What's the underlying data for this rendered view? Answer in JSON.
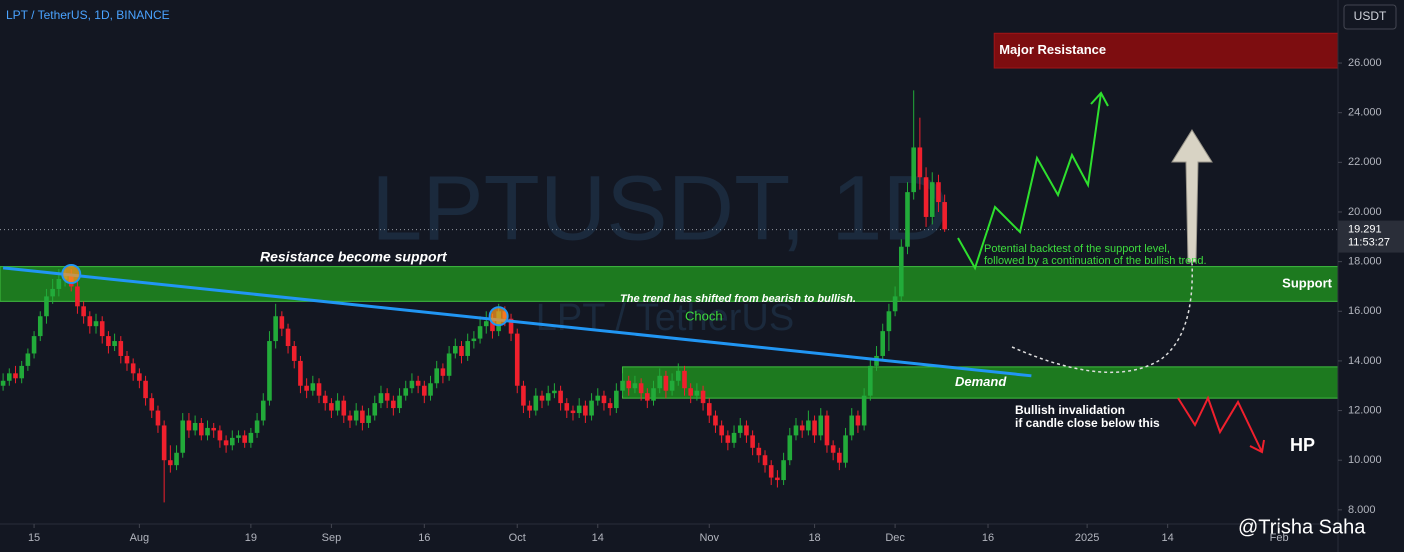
{
  "chart_data": {
    "type": "candlestick",
    "title": "LPT / TetherUS, 1D, BINANCE",
    "watermark": "LPTUSDT, 1D",
    "watermark_sub": "LPT / TetherUS",
    "currency": "USDT",
    "author": "@Trisha Saha",
    "colors": {
      "up": "#22ab3a",
      "down": "#f0202d"
    },
    "xlim": [
      "2024-07-09T12:00:00Z",
      "2025-02-10T12:00:00Z"
    ],
    "ylim": [
      7.43,
      28.54
    ],
    "xticks": [
      {
        "value": "2024-07-15",
        "label": "15"
      },
      {
        "value": "2024-08-01",
        "label": "Aug"
      },
      {
        "value": "2024-08-19",
        "label": "19"
      },
      {
        "value": "2024-09-01",
        "label": "Sep"
      },
      {
        "value": "2024-09-16",
        "label": "16"
      },
      {
        "value": "2024-10-01",
        "label": "Oct"
      },
      {
        "value": "2024-10-14",
        "label": "14"
      },
      {
        "value": "2024-11-01",
        "label": "Nov"
      },
      {
        "value": "2024-11-18",
        "label": "18"
      },
      {
        "value": "2024-12-01",
        "label": "Dec"
      },
      {
        "value": "2024-12-16",
        "label": "16"
      },
      {
        "value": "2025-01-01",
        "label": "2025"
      },
      {
        "value": "2025-01-14",
        "label": "14"
      },
      {
        "value": "2025-02-01",
        "label": "Feb"
      }
    ],
    "yticks": [
      {
        "value": 8,
        "label": "8.000"
      },
      {
        "value": 10,
        "label": "10.000"
      },
      {
        "value": 12,
        "label": "12.000"
      },
      {
        "value": 14,
        "label": "14.000"
      },
      {
        "value": 16,
        "label": "16.000"
      },
      {
        "value": 18,
        "label": "18.000"
      },
      {
        "value": 20,
        "label": "20.000"
      },
      {
        "value": 22,
        "label": "22.000"
      },
      {
        "value": 24,
        "label": "24.000"
      },
      {
        "value": 26,
        "label": "26.000"
      }
    ],
    "candles": [
      [
        13.0,
        13.5,
        12.8,
        13.2
      ],
      [
        13.2,
        13.7,
        13.0,
        13.5
      ],
      [
        13.5,
        13.8,
        13.1,
        13.3
      ],
      [
        13.3,
        14.0,
        13.1,
        13.8
      ],
      [
        13.8,
        14.5,
        13.6,
        14.3
      ],
      [
        14.3,
        15.2,
        14.1,
        15.0
      ],
      [
        15.0,
        16.0,
        14.8,
        15.8
      ],
      [
        15.8,
        16.9,
        15.5,
        16.6
      ],
      [
        16.6,
        17.3,
        16.3,
        16.9
      ],
      [
        16.9,
        17.7,
        16.6,
        17.3
      ],
      [
        17.3,
        17.8,
        17.0,
        17.5
      ],
      [
        17.5,
        17.7,
        16.8,
        17.0
      ],
      [
        17.0,
        17.2,
        15.9,
        16.2
      ],
      [
        16.2,
        16.4,
        15.5,
        15.8
      ],
      [
        15.8,
        16.0,
        15.1,
        15.4
      ],
      [
        15.4,
        15.9,
        15.1,
        15.6
      ],
      [
        15.6,
        15.8,
        14.7,
        15.0
      ],
      [
        15.0,
        15.2,
        14.3,
        14.6
      ],
      [
        14.6,
        15.1,
        14.4,
        14.8
      ],
      [
        14.8,
        15.0,
        13.9,
        14.2
      ],
      [
        14.2,
        14.4,
        13.6,
        13.9
      ],
      [
        13.9,
        14.1,
        13.2,
        13.5
      ],
      [
        13.5,
        13.7,
        12.9,
        13.2
      ],
      [
        13.2,
        13.4,
        12.2,
        12.5
      ],
      [
        12.5,
        12.7,
        11.7,
        12.0
      ],
      [
        12.0,
        12.2,
        11.1,
        11.4
      ],
      [
        11.4,
        11.6,
        8.3,
        10.0
      ],
      [
        10.0,
        10.6,
        9.5,
        9.8
      ],
      [
        9.8,
        10.6,
        9.6,
        10.3
      ],
      [
        10.3,
        11.9,
        10.1,
        11.6
      ],
      [
        11.6,
        11.9,
        10.9,
        11.2
      ],
      [
        11.2,
        11.8,
        11.0,
        11.5
      ],
      [
        11.5,
        11.7,
        10.8,
        11.0
      ],
      [
        11.0,
        11.6,
        10.8,
        11.3
      ],
      [
        11.3,
        11.5,
        10.9,
        11.2
      ],
      [
        11.2,
        11.4,
        10.5,
        10.8
      ],
      [
        10.8,
        11.0,
        10.3,
        10.6
      ],
      [
        10.6,
        11.2,
        10.4,
        10.9
      ],
      [
        10.9,
        11.2,
        10.7,
        11.0
      ],
      [
        11.0,
        11.2,
        10.5,
        10.7
      ],
      [
        10.7,
        11.3,
        10.5,
        11.1
      ],
      [
        11.1,
        11.9,
        10.9,
        11.6
      ],
      [
        11.6,
        12.7,
        11.4,
        12.4
      ],
      [
        12.4,
        15.2,
        12.2,
        14.8
      ],
      [
        14.8,
        16.3,
        14.5,
        15.8
      ],
      [
        15.8,
        16.0,
        15.0,
        15.3
      ],
      [
        15.3,
        15.5,
        14.3,
        14.6
      ],
      [
        14.6,
        14.8,
        13.7,
        14.0
      ],
      [
        14.0,
        14.2,
        12.7,
        13.0
      ],
      [
        13.0,
        13.3,
        12.5,
        12.8
      ],
      [
        12.8,
        13.4,
        12.6,
        13.1
      ],
      [
        13.1,
        13.3,
        12.3,
        12.6
      ],
      [
        12.6,
        12.8,
        12.0,
        12.3
      ],
      [
        12.3,
        12.5,
        11.7,
        12.0
      ],
      [
        12.0,
        12.7,
        11.8,
        12.4
      ],
      [
        12.4,
        12.6,
        11.5,
        11.8
      ],
      [
        11.8,
        12.0,
        11.3,
        11.6
      ],
      [
        11.6,
        12.3,
        11.4,
        12.0
      ],
      [
        12.0,
        12.2,
        11.2,
        11.5
      ],
      [
        11.5,
        12.1,
        11.3,
        11.8
      ],
      [
        11.8,
        12.6,
        11.6,
        12.3
      ],
      [
        12.3,
        13.0,
        12.1,
        12.7
      ],
      [
        12.7,
        12.9,
        12.1,
        12.4
      ],
      [
        12.4,
        12.6,
        11.8,
        12.1
      ],
      [
        12.1,
        12.9,
        11.9,
        12.6
      ],
      [
        12.6,
        13.2,
        12.4,
        12.9
      ],
      [
        12.9,
        13.5,
        12.7,
        13.2
      ],
      [
        13.2,
        13.4,
        12.7,
        13.0
      ],
      [
        13.0,
        13.2,
        12.3,
        12.6
      ],
      [
        12.6,
        13.4,
        12.4,
        13.1
      ],
      [
        13.1,
        14.0,
        12.9,
        13.7
      ],
      [
        13.7,
        13.9,
        13.1,
        13.4
      ],
      [
        13.4,
        14.6,
        13.2,
        14.3
      ],
      [
        14.3,
        14.9,
        14.1,
        14.6
      ],
      [
        14.6,
        14.8,
        13.9,
        14.2
      ],
      [
        14.2,
        15.1,
        14.0,
        14.8
      ],
      [
        14.8,
        15.2,
        14.5,
        14.9
      ],
      [
        14.9,
        15.8,
        14.7,
        15.4
      ],
      [
        15.4,
        16.0,
        15.1,
        15.6
      ],
      [
        15.6,
        15.9,
        14.9,
        15.2
      ],
      [
        15.2,
        16.3,
        15.0,
        16.0
      ],
      [
        16.0,
        16.2,
        15.4,
        15.7
      ],
      [
        15.7,
        15.9,
        14.8,
        15.1
      ],
      [
        15.1,
        15.3,
        12.7,
        13.0
      ],
      [
        13.0,
        13.2,
        11.9,
        12.2
      ],
      [
        12.2,
        12.4,
        11.7,
        12.0
      ],
      [
        12.0,
        12.9,
        11.8,
        12.6
      ],
      [
        12.6,
        12.8,
        12.1,
        12.4
      ],
      [
        12.4,
        13.0,
        12.2,
        12.7
      ],
      [
        12.7,
        13.1,
        12.5,
        12.8
      ],
      [
        12.8,
        13.0,
        12.0,
        12.3
      ],
      [
        12.3,
        12.5,
        11.7,
        12.0
      ],
      [
        12.0,
        12.2,
        11.6,
        11.9
      ],
      [
        11.9,
        12.5,
        11.7,
        12.2
      ],
      [
        12.2,
        12.4,
        11.5,
        11.8
      ],
      [
        11.8,
        12.7,
        11.6,
        12.4
      ],
      [
        12.4,
        12.9,
        12.2,
        12.6
      ],
      [
        12.6,
        12.8,
        12.0,
        12.3
      ],
      [
        12.3,
        12.5,
        11.8,
        12.1
      ],
      [
        12.1,
        13.1,
        11.9,
        12.8
      ],
      [
        12.8,
        13.5,
        12.6,
        13.2
      ],
      [
        13.2,
        13.4,
        12.6,
        12.9
      ],
      [
        12.9,
        13.4,
        12.7,
        13.1
      ],
      [
        13.1,
        13.3,
        12.4,
        12.7
      ],
      [
        12.7,
        12.9,
        12.1,
        12.4
      ],
      [
        12.4,
        13.2,
        12.2,
        12.9
      ],
      [
        12.9,
        13.7,
        12.7,
        13.4
      ],
      [
        13.4,
        13.6,
        12.5,
        12.8
      ],
      [
        12.8,
        13.5,
        12.6,
        13.2
      ],
      [
        13.2,
        13.9,
        13.0,
        13.6
      ],
      [
        13.6,
        13.8,
        12.6,
        12.9
      ],
      [
        12.9,
        13.1,
        12.3,
        12.6
      ],
      [
        12.6,
        13.1,
        12.4,
        12.8
      ],
      [
        12.8,
        13.0,
        12.0,
        12.3
      ],
      [
        12.3,
        12.5,
        11.5,
        11.8
      ],
      [
        11.8,
        12.0,
        11.1,
        11.4
      ],
      [
        11.4,
        11.6,
        10.7,
        11.0
      ],
      [
        11.0,
        11.2,
        10.4,
        10.7
      ],
      [
        10.7,
        11.4,
        10.5,
        11.1
      ],
      [
        11.1,
        11.7,
        10.9,
        11.4
      ],
      [
        11.4,
        11.6,
        10.7,
        11.0
      ],
      [
        11.0,
        11.2,
        10.2,
        10.5
      ],
      [
        10.5,
        10.7,
        9.9,
        10.2
      ],
      [
        10.2,
        10.4,
        9.5,
        9.8
      ],
      [
        9.8,
        10.0,
        9.0,
        9.3
      ],
      [
        9.3,
        9.6,
        8.9,
        9.2
      ],
      [
        9.2,
        10.3,
        9.0,
        10.0
      ],
      [
        10.0,
        11.3,
        9.8,
        11.0
      ],
      [
        11.0,
        11.7,
        10.8,
        11.4
      ],
      [
        11.4,
        11.6,
        10.9,
        11.2
      ],
      [
        11.2,
        12.0,
        11.0,
        11.6
      ],
      [
        11.6,
        11.8,
        10.7,
        11.0
      ],
      [
        11.0,
        12.1,
        10.8,
        11.8
      ],
      [
        11.8,
        12.0,
        10.3,
        10.6
      ],
      [
        10.6,
        10.8,
        10.0,
        10.3
      ],
      [
        10.3,
        10.5,
        9.6,
        9.9
      ],
      [
        9.9,
        11.3,
        9.7,
        11.0
      ],
      [
        11.0,
        12.1,
        10.8,
        11.8
      ],
      [
        11.8,
        12.0,
        11.1,
        11.4
      ],
      [
        11.4,
        12.9,
        11.2,
        12.6
      ],
      [
        12.6,
        14.1,
        12.4,
        13.8
      ],
      [
        13.8,
        14.6,
        13.6,
        14.2
      ],
      [
        14.2,
        15.5,
        14.0,
        15.2
      ],
      [
        15.2,
        16.3,
        14.4,
        16.0
      ],
      [
        16.0,
        17.0,
        15.8,
        16.6
      ],
      [
        16.6,
        18.9,
        16.4,
        18.6
      ],
      [
        18.6,
        21.2,
        18.3,
        20.8
      ],
      [
        20.8,
        24.9,
        20.5,
        22.6
      ],
      [
        22.6,
        23.8,
        20.9,
        21.4
      ],
      [
        21.4,
        21.8,
        19.4,
        19.8
      ],
      [
        19.8,
        21.6,
        19.5,
        21.2
      ],
      [
        21.2,
        21.5,
        20.0,
        20.4
      ],
      [
        20.4,
        20.7,
        19.2,
        19.3
      ]
    ],
    "last_price": {
      "value": 19.291,
      "countdown": "11:53:27"
    },
    "trendline": {
      "x": [
        "2024-07-10",
        "2024-12-23"
      ],
      "values": [
        17.75,
        13.4
      ],
      "color": "#2196f3"
    },
    "touch_points": {
      "x": [
        "2024-07-21",
        "2024-09-28"
      ],
      "values": [
        17.5,
        15.8
      ],
      "color": "#f7941d"
    },
    "zones": [
      {
        "name": "Major Resistance",
        "range": [
          25.8,
          27.2
        ],
        "from": "2024-12-17",
        "color": "#7d0d10"
      },
      {
        "name": "Support",
        "range": [
          16.4,
          17.8
        ],
        "from": "2024-07-09T12:00:00Z",
        "color": "#1d7a1f"
      },
      {
        "name": "Demand",
        "range": [
          12.5,
          13.76
        ],
        "from": "2024-10-18",
        "color": "#1d7a1f"
      }
    ],
    "annotations": [
      "Resistance become support",
      "The trend has shifted from bearish to bullish.",
      "Choch",
      "Potential backtest of the support level,",
      "followed by a continuation of the bullish trend.",
      "Bullish invalidation",
      "if candle close below this",
      "HP"
    ]
  }
}
